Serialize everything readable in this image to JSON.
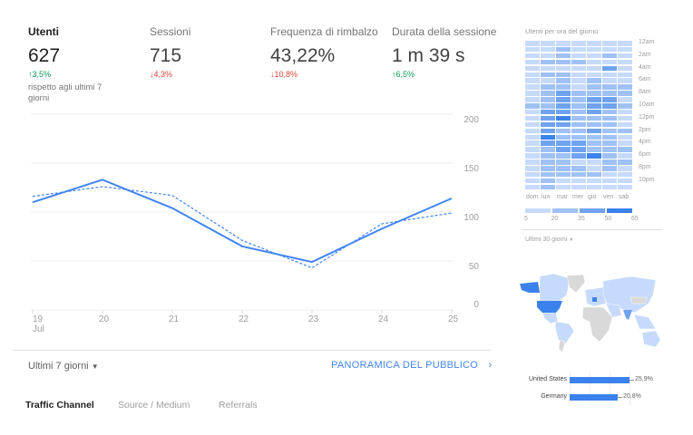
{
  "metrics": [
    {
      "label": "Utenti",
      "value": "627",
      "delta": "3,5%",
      "direction": "up"
    },
    {
      "label": "Sessioni",
      "value": "715",
      "delta": "4,3%",
      "direction": "down"
    },
    {
      "label": "Frequenza di rimbalzo",
      "value": "43,22%",
      "delta": "10,8%",
      "direction": "down"
    },
    {
      "label": "Durata della sessione",
      "value": "1 m 39 s",
      "delta": "6,5%",
      "direction": "up"
    }
  ],
  "comparison_note": "rispetto agli ultimi 7 giorni",
  "chart_data": {
    "type": "line",
    "x": [
      "19",
      "20",
      "21",
      "22",
      "23",
      "24",
      "25"
    ],
    "x_sublabel": "Jul",
    "ylim": [
      0,
      200
    ],
    "yticks": [
      "200",
      "150",
      "100",
      "50",
      "0"
    ],
    "grid": true,
    "series": [
      {
        "style": "solid",
        "values": [
          110,
          133,
          104,
          65,
          49,
          83,
          114
        ]
      },
      {
        "style": "dashed",
        "values": [
          116,
          126,
          117,
          71,
          43,
          88,
          99
        ]
      }
    ],
    "color": "#4285f4"
  },
  "footer": {
    "range": "Ultimi 7 giorni",
    "link": "PANORAMICA DEL PUBBLICO"
  },
  "tabs": [
    "Traffic Channel",
    "Source / Medium",
    "Referrals"
  ],
  "heatmap": {
    "title": "Utenti per ora del giorno",
    "hours": [
      "12am",
      "2am",
      "4am",
      "6am",
      "8am",
      "10am",
      "12pm",
      "2pm",
      "4pm",
      "6pm",
      "8pm",
      "10pm"
    ],
    "days": [
      "dom",
      "lun",
      "mar",
      "mer",
      "gio",
      "ven",
      "sab"
    ],
    "legend": [
      "5",
      "20",
      "35",
      "50",
      "65"
    ],
    "colors": [
      "#c6dafc",
      "#9fc1f6",
      "#6fa3f0",
      "#3b82ec"
    ],
    "levels": [
      [
        0,
        0,
        0,
        0,
        0,
        0,
        0
      ],
      [
        0,
        0,
        1,
        0,
        0,
        0,
        0
      ],
      [
        0,
        0,
        1,
        0,
        0,
        1,
        0
      ],
      [
        0,
        1,
        1,
        1,
        0,
        0,
        0
      ],
      [
        0,
        0,
        0,
        0,
        0,
        2,
        0
      ],
      [
        0,
        1,
        1,
        0,
        0,
        0,
        0
      ],
      [
        0,
        0,
        1,
        0,
        1,
        0,
        0
      ],
      [
        0,
        1,
        1,
        0,
        1,
        1,
        1
      ],
      [
        0,
        1,
        2,
        1,
        1,
        1,
        1
      ],
      [
        0,
        1,
        2,
        1,
        2,
        2,
        0
      ],
      [
        1,
        1,
        2,
        1,
        2,
        2,
        1
      ],
      [
        0,
        2,
        2,
        1,
        2,
        1,
        0
      ],
      [
        0,
        2,
        3,
        1,
        1,
        1,
        0
      ],
      [
        0,
        2,
        2,
        1,
        1,
        1,
        0
      ],
      [
        0,
        2,
        1,
        1,
        2,
        1,
        1
      ],
      [
        0,
        3,
        1,
        1,
        1,
        1,
        0
      ],
      [
        0,
        2,
        2,
        2,
        1,
        1,
        0
      ],
      [
        0,
        1,
        2,
        2,
        1,
        1,
        1
      ],
      [
        0,
        1,
        1,
        2,
        3,
        1,
        0
      ],
      [
        0,
        1,
        1,
        0,
        0,
        1,
        1
      ],
      [
        0,
        1,
        1,
        1,
        0,
        1,
        0
      ],
      [
        0,
        1,
        1,
        1,
        1,
        0,
        0
      ],
      [
        0,
        1,
        0,
        0,
        0,
        0,
        0
      ],
      [
        0,
        1,
        0,
        0,
        0,
        0,
        0
      ]
    ]
  },
  "geo": {
    "range": "Ultimi 30 giorni",
    "countries": [
      {
        "name": "United States",
        "value": 25.9,
        "label": "25,9%"
      },
      {
        "name": "Germany",
        "value": 20.8,
        "label": "20,8%"
      }
    ]
  }
}
